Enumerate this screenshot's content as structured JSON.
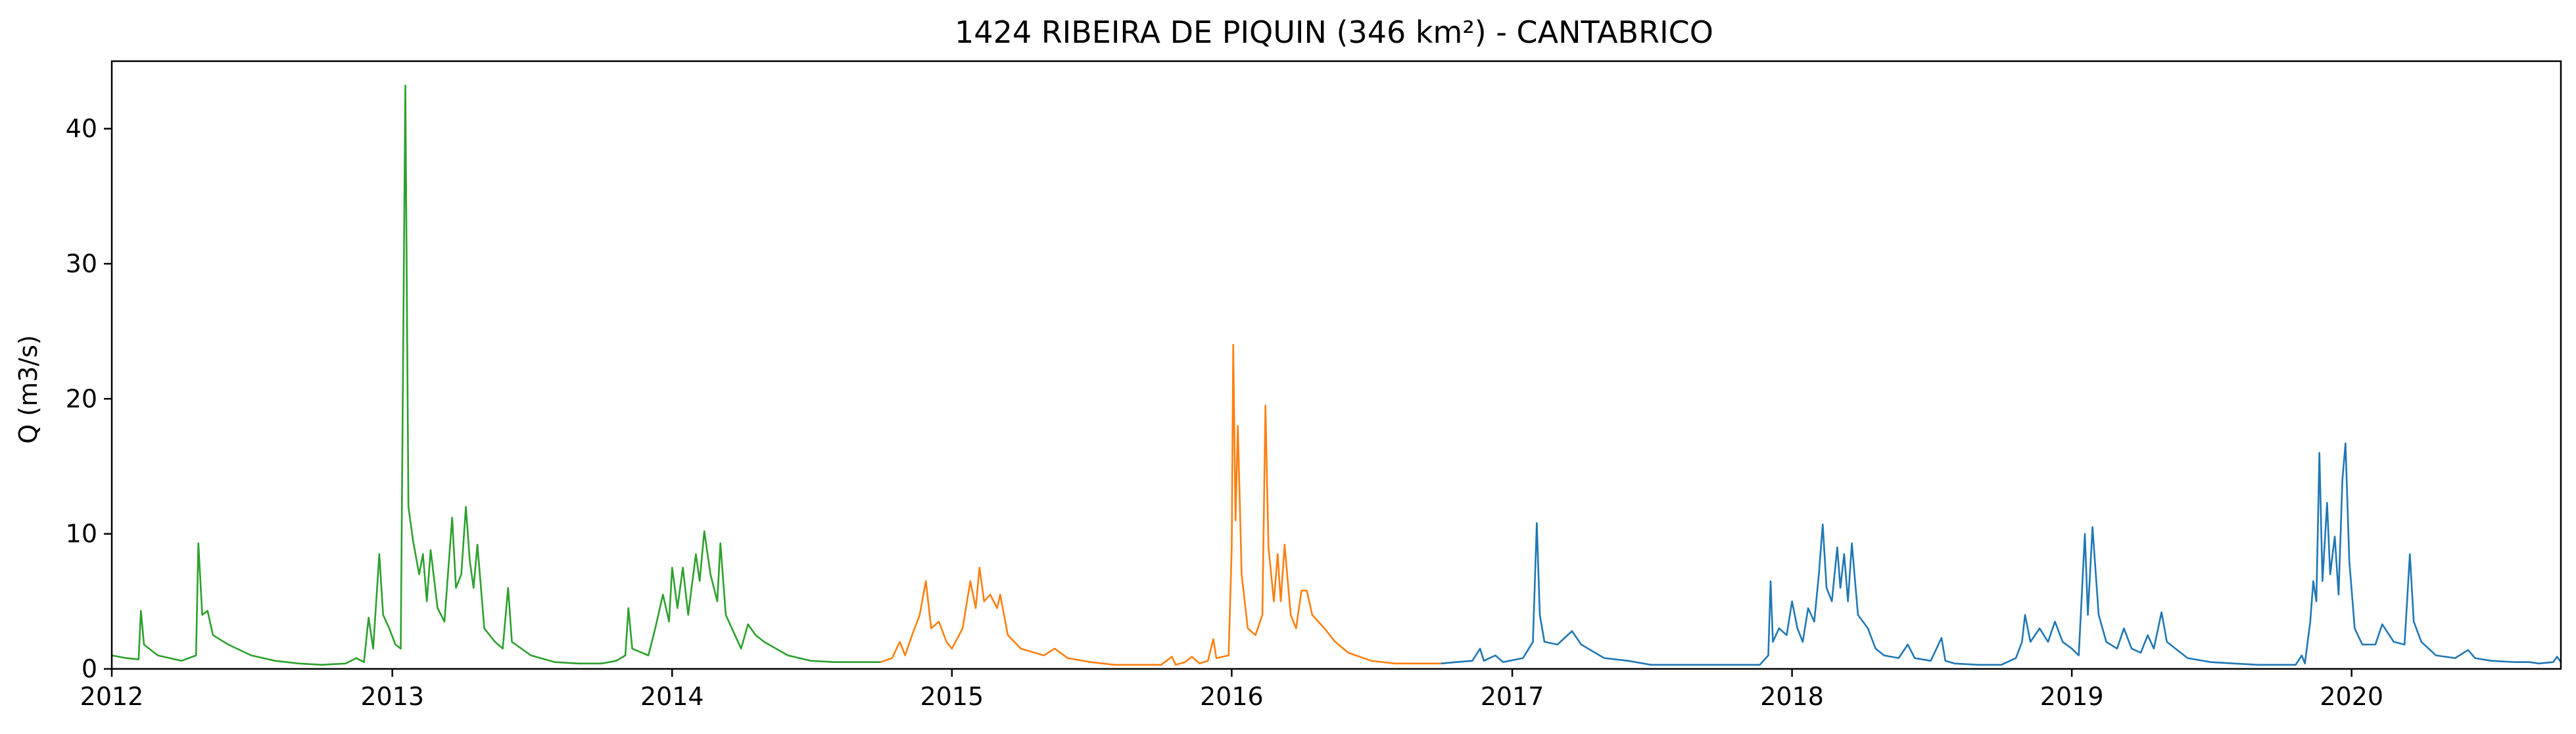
{
  "chart_data": {
    "type": "line",
    "title": "1424 RIBEIRA DE PIQUIN (346 km²) - CANTABRICO",
    "xlabel": "",
    "ylabel": "Q (m3/s)",
    "xlim": [
      "2012-01-01",
      "2020-09-30"
    ],
    "ylim": [
      0,
      45
    ],
    "x_ticks": [
      "2012",
      "2013",
      "2014",
      "2015",
      "2016",
      "2017",
      "2018",
      "2019",
      "2020"
    ],
    "y_ticks": [
      0,
      10,
      20,
      30,
      40
    ],
    "grid": false,
    "legend": "none",
    "series": [
      {
        "color": "#2ca02c",
        "points": [
          [
            "2012-01-01",
            1.0
          ],
          [
            "2012-01-20",
            0.8
          ],
          [
            "2012-02-05",
            0.7
          ],
          [
            "2012-02-08",
            4.3
          ],
          [
            "2012-02-12",
            1.8
          ],
          [
            "2012-03-01",
            1.0
          ],
          [
            "2012-04-01",
            0.6
          ],
          [
            "2012-04-20",
            1.0
          ],
          [
            "2012-04-23",
            9.3
          ],
          [
            "2012-04-28",
            4.0
          ],
          [
            "2012-05-05",
            4.3
          ],
          [
            "2012-05-12",
            2.5
          ],
          [
            "2012-06-01",
            1.8
          ],
          [
            "2012-07-01",
            1.0
          ],
          [
            "2012-08-01",
            0.6
          ],
          [
            "2012-09-01",
            0.4
          ],
          [
            "2012-10-01",
            0.3
          ],
          [
            "2012-11-01",
            0.4
          ],
          [
            "2012-11-15",
            0.8
          ],
          [
            "2012-11-25",
            0.5
          ],
          [
            "2012-12-01",
            3.8
          ],
          [
            "2012-12-07",
            1.5
          ],
          [
            "2012-12-15",
            8.5
          ],
          [
            "2012-12-20",
            4.0
          ],
          [
            "2012-12-28",
            3.0
          ],
          [
            "2013-01-05",
            1.8
          ],
          [
            "2013-01-12",
            1.5
          ],
          [
            "2013-01-18",
            43.2
          ],
          [
            "2013-01-22",
            12.0
          ],
          [
            "2013-01-28",
            9.5
          ],
          [
            "2013-02-05",
            7.0
          ],
          [
            "2013-02-10",
            8.5
          ],
          [
            "2013-02-15",
            5.0
          ],
          [
            "2013-02-20",
            8.8
          ],
          [
            "2013-03-01",
            4.5
          ],
          [
            "2013-03-10",
            3.5
          ],
          [
            "2013-03-20",
            11.2
          ],
          [
            "2013-03-25",
            6.0
          ],
          [
            "2013-04-01",
            7.0
          ],
          [
            "2013-04-07",
            12.0
          ],
          [
            "2013-04-12",
            8.0
          ],
          [
            "2013-04-17",
            6.0
          ],
          [
            "2013-04-22",
            9.2
          ],
          [
            "2013-05-01",
            3.0
          ],
          [
            "2013-05-15",
            2.0
          ],
          [
            "2013-05-25",
            1.5
          ],
          [
            "2013-06-01",
            6.0
          ],
          [
            "2013-06-06",
            2.0
          ],
          [
            "2013-07-01",
            1.0
          ],
          [
            "2013-08-01",
            0.5
          ],
          [
            "2013-09-01",
            0.4
          ],
          [
            "2013-10-01",
            0.4
          ],
          [
            "2013-10-20",
            0.6
          ],
          [
            "2013-11-01",
            1.0
          ],
          [
            "2013-11-05",
            4.5
          ],
          [
            "2013-11-10",
            1.5
          ],
          [
            "2013-12-01",
            1.0
          ],
          [
            "2013-12-10",
            3.0
          ],
          [
            "2013-12-20",
            5.5
          ],
          [
            "2013-12-28",
            3.5
          ],
          [
            "2014-01-01",
            7.5
          ],
          [
            "2014-01-08",
            4.5
          ],
          [
            "2014-01-15",
            7.5
          ],
          [
            "2014-01-22",
            4.0
          ],
          [
            "2014-02-01",
            8.5
          ],
          [
            "2014-02-06",
            6.5
          ],
          [
            "2014-02-12",
            10.2
          ],
          [
            "2014-02-20",
            7.0
          ],
          [
            "2014-03-01",
            5.0
          ],
          [
            "2014-03-05",
            9.3
          ],
          [
            "2014-03-12",
            4.0
          ],
          [
            "2014-04-01",
            1.5
          ],
          [
            "2014-04-10",
            3.3
          ],
          [
            "2014-04-20",
            2.5
          ],
          [
            "2014-05-01",
            2.0
          ],
          [
            "2014-06-01",
            1.0
          ],
          [
            "2014-07-01",
            0.6
          ],
          [
            "2014-08-01",
            0.5
          ],
          [
            "2014-09-01",
            0.5
          ],
          [
            "2014-09-30",
            0.5
          ]
        ]
      },
      {
        "color": "#ff7f0e",
        "points": [
          [
            "2014-09-30",
            0.5
          ],
          [
            "2014-10-15",
            0.8
          ],
          [
            "2014-10-25",
            2.0
          ],
          [
            "2014-11-01",
            1.0
          ],
          [
            "2014-11-10",
            2.5
          ],
          [
            "2014-11-20",
            4.0
          ],
          [
            "2014-11-28",
            6.5
          ],
          [
            "2014-12-05",
            3.0
          ],
          [
            "2014-12-15",
            3.5
          ],
          [
            "2014-12-25",
            2.0
          ],
          [
            "2015-01-01",
            1.5
          ],
          [
            "2015-01-15",
            3.0
          ],
          [
            "2015-01-25",
            6.5
          ],
          [
            "2015-02-01",
            4.5
          ],
          [
            "2015-02-06",
            7.5
          ],
          [
            "2015-02-12",
            5.0
          ],
          [
            "2015-02-20",
            5.5
          ],
          [
            "2015-03-01",
            4.5
          ],
          [
            "2015-03-05",
            5.5
          ],
          [
            "2015-03-15",
            2.5
          ],
          [
            "2015-04-01",
            1.5
          ],
          [
            "2015-05-01",
            1.0
          ],
          [
            "2015-05-15",
            1.5
          ],
          [
            "2015-06-01",
            0.8
          ],
          [
            "2015-07-01",
            0.5
          ],
          [
            "2015-08-01",
            0.3
          ],
          [
            "2015-09-01",
            0.3
          ],
          [
            "2015-10-01",
            0.3
          ],
          [
            "2015-10-15",
            0.9
          ],
          [
            "2015-10-20",
            0.3
          ],
          [
            "2015-11-01",
            0.5
          ],
          [
            "2015-11-10",
            0.9
          ],
          [
            "2015-11-20",
            0.4
          ],
          [
            "2015-12-01",
            0.6
          ],
          [
            "2015-12-08",
            2.2
          ],
          [
            "2015-12-12",
            0.8
          ],
          [
            "2015-12-28",
            1.0
          ],
          [
            "2016-01-01",
            9.0
          ],
          [
            "2016-01-03",
            24.0
          ],
          [
            "2016-01-06",
            11.0
          ],
          [
            "2016-01-09",
            18.0
          ],
          [
            "2016-01-14",
            7.0
          ],
          [
            "2016-01-22",
            3.0
          ],
          [
            "2016-02-01",
            2.5
          ],
          [
            "2016-02-10",
            4.0
          ],
          [
            "2016-02-14",
            19.5
          ],
          [
            "2016-02-18",
            9.0
          ],
          [
            "2016-02-25",
            5.0
          ],
          [
            "2016-03-01",
            8.5
          ],
          [
            "2016-03-05",
            5.0
          ],
          [
            "2016-03-10",
            9.2
          ],
          [
            "2016-03-18",
            4.0
          ],
          [
            "2016-03-25",
            3.0
          ],
          [
            "2016-04-01",
            5.8
          ],
          [
            "2016-04-08",
            5.8
          ],
          [
            "2016-04-15",
            4.0
          ],
          [
            "2016-05-01",
            3.0
          ],
          [
            "2016-05-15",
            2.0
          ],
          [
            "2016-06-01",
            1.2
          ],
          [
            "2016-07-01",
            0.6
          ],
          [
            "2016-08-01",
            0.4
          ],
          [
            "2016-09-01",
            0.4
          ],
          [
            "2016-09-30",
            0.4
          ]
        ]
      },
      {
        "color": "#1f77b4",
        "points": [
          [
            "2016-09-30",
            0.4
          ],
          [
            "2016-10-20",
            0.5
          ],
          [
            "2016-11-10",
            0.6
          ],
          [
            "2016-11-20",
            1.5
          ],
          [
            "2016-11-25",
            0.6
          ],
          [
            "2016-12-10",
            1.0
          ],
          [
            "2016-12-20",
            0.5
          ],
          [
            "2017-01-15",
            0.8
          ],
          [
            "2017-01-28",
            2.0
          ],
          [
            "2017-02-02",
            10.8
          ],
          [
            "2017-02-06",
            4.0
          ],
          [
            "2017-02-12",
            2.0
          ],
          [
            "2017-03-01",
            1.8
          ],
          [
            "2017-03-20",
            2.8
          ],
          [
            "2017-04-01",
            1.8
          ],
          [
            "2017-05-01",
            0.8
          ],
          [
            "2017-06-01",
            0.6
          ],
          [
            "2017-07-01",
            0.3
          ],
          [
            "2017-08-01",
            0.3
          ],
          [
            "2017-09-01",
            0.3
          ],
          [
            "2017-10-01",
            0.3
          ],
          [
            "2017-11-01",
            0.3
          ],
          [
            "2017-11-20",
            0.3
          ],
          [
            "2017-12-01",
            1.0
          ],
          [
            "2017-12-04",
            6.5
          ],
          [
            "2017-12-07",
            2.0
          ],
          [
            "2017-12-15",
            3.0
          ],
          [
            "2017-12-25",
            2.5
          ],
          [
            "2018-01-01",
            5.0
          ],
          [
            "2018-01-08",
            3.0
          ],
          [
            "2018-01-15",
            2.0
          ],
          [
            "2018-01-22",
            4.5
          ],
          [
            "2018-01-30",
            3.5
          ],
          [
            "2018-02-05",
            7.0
          ],
          [
            "2018-02-10",
            10.7
          ],
          [
            "2018-02-15",
            6.0
          ],
          [
            "2018-02-22",
            5.0
          ],
          [
            "2018-03-01",
            9.0
          ],
          [
            "2018-03-05",
            6.0
          ],
          [
            "2018-03-10",
            8.5
          ],
          [
            "2018-03-15",
            5.0
          ],
          [
            "2018-03-20",
            9.3
          ],
          [
            "2018-03-28",
            4.0
          ],
          [
            "2018-04-10",
            3.0
          ],
          [
            "2018-04-20",
            1.5
          ],
          [
            "2018-05-01",
            1.0
          ],
          [
            "2018-05-20",
            0.8
          ],
          [
            "2018-06-01",
            1.8
          ],
          [
            "2018-06-10",
            0.8
          ],
          [
            "2018-07-01",
            0.6
          ],
          [
            "2018-07-15",
            2.3
          ],
          [
            "2018-07-20",
            0.6
          ],
          [
            "2018-08-01",
            0.4
          ],
          [
            "2018-09-01",
            0.3
          ],
          [
            "2018-10-01",
            0.3
          ],
          [
            "2018-10-20",
            0.8
          ],
          [
            "2018-10-28",
            2.0
          ],
          [
            "2018-11-01",
            4.0
          ],
          [
            "2018-11-08",
            2.0
          ],
          [
            "2018-11-20",
            3.0
          ],
          [
            "2018-12-01",
            2.0
          ],
          [
            "2018-12-10",
            3.5
          ],
          [
            "2018-12-20",
            2.0
          ],
          [
            "2019-01-01",
            1.5
          ],
          [
            "2019-01-10",
            1.0
          ],
          [
            "2019-01-18",
            10.0
          ],
          [
            "2019-01-22",
            4.0
          ],
          [
            "2019-01-28",
            10.5
          ],
          [
            "2019-02-05",
            4.0
          ],
          [
            "2019-02-15",
            2.0
          ],
          [
            "2019-03-01",
            1.5
          ],
          [
            "2019-03-10",
            3.0
          ],
          [
            "2019-03-20",
            1.5
          ],
          [
            "2019-04-01",
            1.2
          ],
          [
            "2019-04-10",
            2.5
          ],
          [
            "2019-04-18",
            1.5
          ],
          [
            "2019-04-28",
            4.2
          ],
          [
            "2019-05-05",
            2.0
          ],
          [
            "2019-06-01",
            0.8
          ],
          [
            "2019-07-01",
            0.5
          ],
          [
            "2019-08-01",
            0.4
          ],
          [
            "2019-09-01",
            0.3
          ],
          [
            "2019-10-01",
            0.3
          ],
          [
            "2019-10-20",
            0.3
          ],
          [
            "2019-10-28",
            1.0
          ],
          [
            "2019-11-01",
            0.4
          ],
          [
            "2019-11-08",
            3.5
          ],
          [
            "2019-11-12",
            6.5
          ],
          [
            "2019-11-16",
            5.0
          ],
          [
            "2019-11-20",
            16.0
          ],
          [
            "2019-11-24",
            6.5
          ],
          [
            "2019-11-30",
            12.3
          ],
          [
            "2019-12-04",
            7.0
          ],
          [
            "2019-12-10",
            9.8
          ],
          [
            "2019-12-15",
            5.5
          ],
          [
            "2019-12-20",
            14.0
          ],
          [
            "2019-12-24",
            16.7
          ],
          [
            "2019-12-29",
            8.0
          ],
          [
            "2020-01-05",
            3.0
          ],
          [
            "2020-01-15",
            1.8
          ],
          [
            "2020-02-01",
            1.8
          ],
          [
            "2020-02-10",
            3.3
          ],
          [
            "2020-02-25",
            2.0
          ],
          [
            "2020-03-10",
            1.8
          ],
          [
            "2020-03-17",
            8.5
          ],
          [
            "2020-03-22",
            3.5
          ],
          [
            "2020-04-01",
            2.0
          ],
          [
            "2020-04-20",
            1.0
          ],
          [
            "2020-05-15",
            0.8
          ],
          [
            "2020-06-01",
            1.4
          ],
          [
            "2020-06-10",
            0.8
          ],
          [
            "2020-07-01",
            0.6
          ],
          [
            "2020-08-01",
            0.5
          ],
          [
            "2020-08-20",
            0.5
          ],
          [
            "2020-09-01",
            0.4
          ],
          [
            "2020-09-20",
            0.5
          ],
          [
            "2020-09-25",
            0.9
          ],
          [
            "2020-09-30",
            0.5
          ]
        ]
      }
    ]
  }
}
